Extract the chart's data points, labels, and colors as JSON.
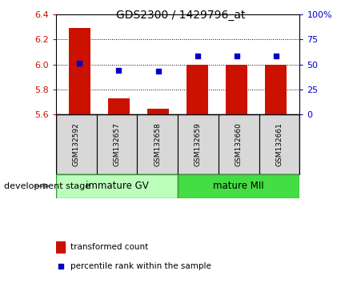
{
  "title": "GDS2300 / 1429796_at",
  "samples": [
    "GSM132592",
    "GSM132657",
    "GSM132658",
    "GSM132659",
    "GSM132660",
    "GSM132661"
  ],
  "bar_values": [
    6.29,
    5.73,
    5.65,
    6.0,
    6.0,
    6.0
  ],
  "percentile_values": [
    6.01,
    5.955,
    5.945,
    6.065,
    6.07,
    6.065
  ],
  "bar_bottom": 5.6,
  "ylim_left": [
    5.6,
    6.4
  ],
  "ylim_right": [
    0,
    100
  ],
  "yticks_left": [
    5.6,
    5.8,
    6.0,
    6.2,
    6.4
  ],
  "yticks_right": [
    0,
    25,
    50,
    75,
    100
  ],
  "ytick_labels_right": [
    "0",
    "25",
    "50",
    "75",
    "100%"
  ],
  "bar_color": "#cc1100",
  "dot_color": "#0000cc",
  "group1_label": "immature GV",
  "group2_label": "mature MII",
  "group1_color": "#bbffbb",
  "group2_color": "#44dd44",
  "xlabel_area": "development stage",
  "legend_bar_label": "transformed count",
  "legend_dot_label": "percentile rank within the sample",
  "tick_color_left": "#cc1100",
  "tick_color_right": "#0000cc",
  "group1_count": 3,
  "group2_count": 3
}
